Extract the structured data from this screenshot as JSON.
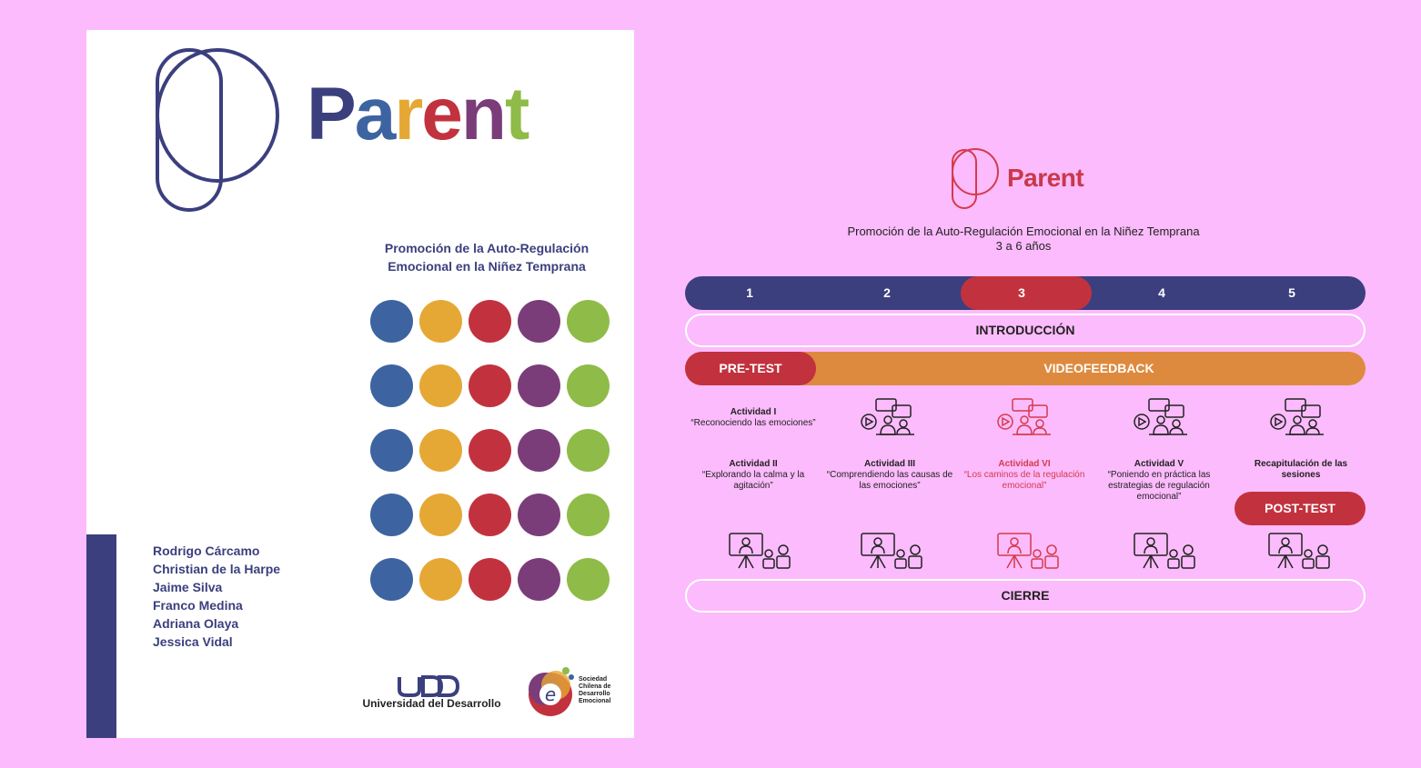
{
  "cover": {
    "brand_word_letters": [
      {
        "ch": "P",
        "color": "#3b3f7e"
      },
      {
        "ch": "a",
        "color": "#3d64a0"
      },
      {
        "ch": "r",
        "color": "#e6a835"
      },
      {
        "ch": "e",
        "color": "#c2323e"
      },
      {
        "ch": "n",
        "color": "#7b3d79"
      },
      {
        "ch": "t",
        "color": "#8fbb48"
      }
    ],
    "subtitle_line1": "Promoción de la Auto-Regulación",
    "subtitle_line2": "Emocional en la Niñez Temprana",
    "dot_colors": [
      "#3d64a0",
      "#e6a835",
      "#c2323e",
      "#7b3d79",
      "#8fbb48"
    ],
    "dot_rows": 5,
    "authors": [
      "Rodrigo Cárcamo",
      "Christian de la Harpe",
      "Jaime Silva",
      "Franco Medina",
      "Adriana Olaya",
      "Jessica Vidal"
    ],
    "udd_logo": "UDD",
    "udd_name": "Universidad del Desarrollo",
    "society_lines": [
      "Sociedad",
      "Chilena de",
      "Desarrollo",
      "Emocional"
    ],
    "colors": {
      "navy": "#3b3f7e"
    }
  },
  "diagram": {
    "brand_word": "Parent",
    "subtitle": "Promoción de la Auto-Regulación Emocional en la Niñez Temprana",
    "age_range": "3 a 6 años",
    "sessions": [
      "1",
      "2",
      "3",
      "4",
      "5"
    ],
    "highlighted_session": "3",
    "intro": "INTRODUCCIÓN",
    "pretest": "PRE-TEST",
    "videofeedback": "VIDEOFEEDBACK",
    "activities": {
      "a1_title": "Actividad I",
      "a1_desc": "“Reconociendo las emociones”",
      "a2_title": "Actividad II",
      "a2_desc": "“Explorando la calma y la agitación”",
      "a3_title": "Actividad III",
      "a3_desc": "“Comprendiendo las causas de las emociones”",
      "a6_title": "Actividad VI",
      "a6_desc": "“Los caminos de la regulación emocional”",
      "a5_title": "Actividad V",
      "a5_desc": "“Poniendo en práctica las estrategias de regulación emocional”",
      "recap_title": "Recapitulación de las sesiones"
    },
    "posttest": "POST-TEST",
    "cierre": "CIERRE",
    "colors": {
      "navy": "#3b3f7e",
      "red": "#c2323e",
      "orange": "#de8a3e",
      "pink_bg": "#fcbbfc"
    }
  }
}
